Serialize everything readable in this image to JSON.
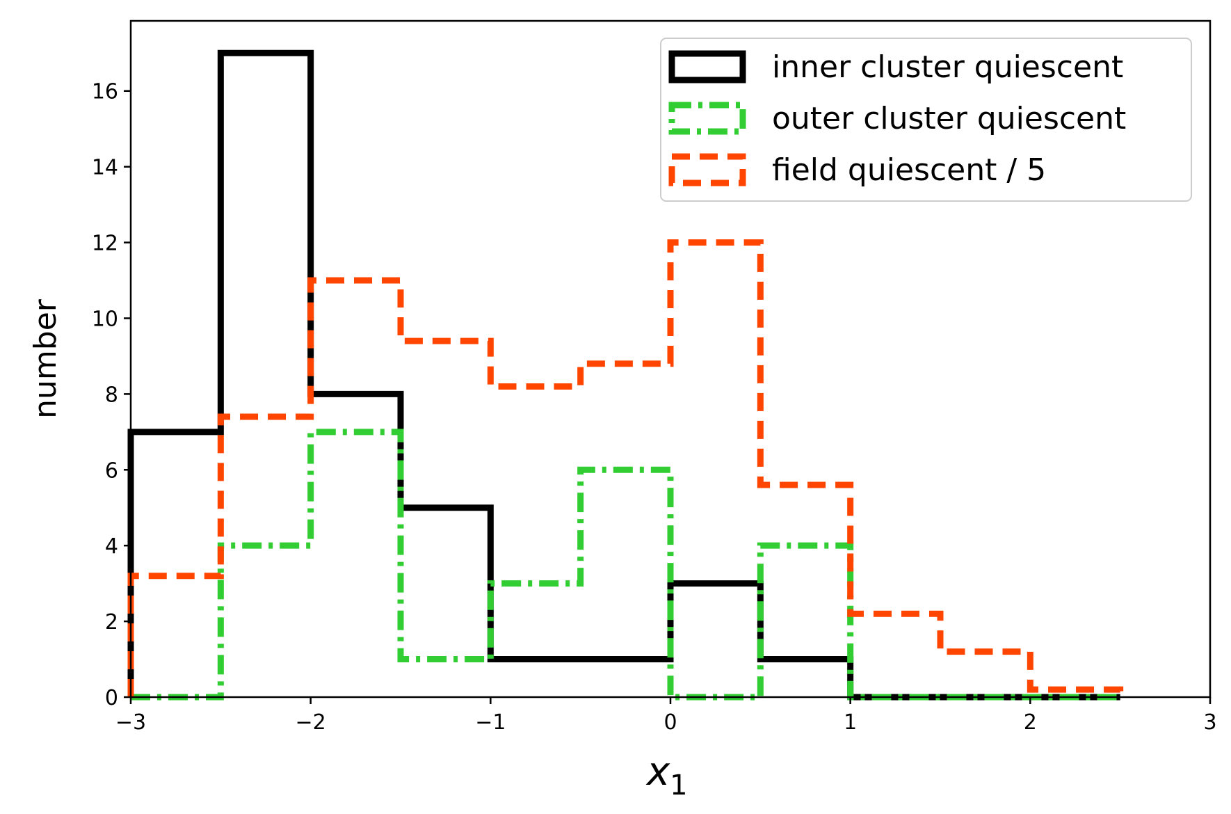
{
  "chart_data": {
    "type": "histogram-step",
    "xlabel_base": "x",
    "xlabel_sub": "1",
    "ylabel": "number",
    "xlim": [
      -3,
      3
    ],
    "ylim": [
      0,
      17.85
    ],
    "xticks": [
      -3,
      -2,
      -1,
      0,
      1,
      2,
      3
    ],
    "xtick_labels": [
      "−3",
      "−2",
      "−1",
      "0",
      "1",
      "2",
      "3"
    ],
    "yticks": [
      0,
      2,
      4,
      6,
      8,
      10,
      12,
      14,
      16
    ],
    "ytick_labels": [
      "0",
      "2",
      "4",
      "6",
      "8",
      "10",
      "12",
      "14",
      "16"
    ],
    "bin_edges": [
      -3,
      -2.5,
      -2,
      -1.5,
      -1,
      -0.5,
      0,
      0.5,
      1,
      1.5,
      2,
      2.5
    ],
    "grid": false,
    "legend_position": "top-right",
    "series": [
      {
        "name": "inner cluster quiescent",
        "color": "#000000",
        "linestyle": "solid",
        "values": [
          7,
          17,
          8,
          5,
          1,
          1,
          3,
          1,
          0,
          0,
          0
        ]
      },
      {
        "name": "outer cluster quiescent",
        "color": "#32cd32",
        "linestyle": "dashdot",
        "values": [
          0,
          4,
          7,
          1,
          3,
          6,
          0,
          4,
          0,
          0,
          0
        ]
      },
      {
        "name": "field quiescent / 5",
        "color": "#ff4500",
        "linestyle": "dashed",
        "values": [
          3.2,
          7.4,
          11,
          9.4,
          8.2,
          8.8,
          12,
          5.6,
          2.2,
          1.2,
          0.2
        ]
      }
    ]
  }
}
